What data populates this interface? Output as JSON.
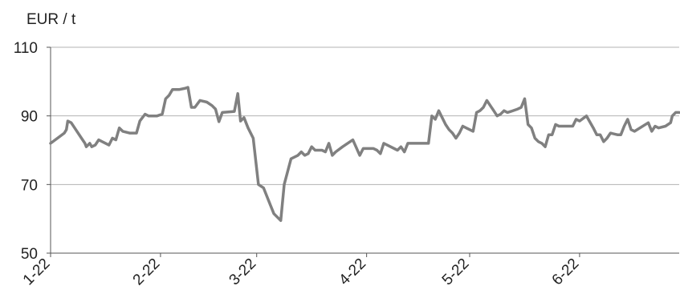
{
  "chart_data": {
    "type": "line",
    "ylabel": "EUR / t",
    "ylim": [
      50,
      110
    ],
    "yticks": [
      50,
      70,
      90,
      110
    ],
    "xlim": [
      0,
      183
    ],
    "xticks": [
      {
        "x": 0,
        "label": "1-22"
      },
      {
        "x": 32,
        "label": "2-22"
      },
      {
        "x": 60,
        "label": "3-22"
      },
      {
        "x": 92,
        "label": "4-22"
      },
      {
        "x": 122,
        "label": "5-22"
      },
      {
        "x": 154,
        "label": "6-22"
      }
    ],
    "grid": "horizontal",
    "legend": "none",
    "series": [
      {
        "color": "#808080",
        "points": [
          [
            0,
            82
          ],
          [
            2,
            83.5
          ],
          [
            4,
            85
          ],
          [
            4.6,
            86
          ],
          [
            5,
            88.5
          ],
          [
            6,
            88
          ],
          [
            7,
            86.5
          ],
          [
            9,
            83.5
          ],
          [
            10,
            82
          ],
          [
            10.4,
            81
          ],
          [
            11.4,
            82
          ],
          [
            12,
            81
          ],
          [
            13,
            81.5
          ],
          [
            14,
            83
          ],
          [
            16,
            82
          ],
          [
            17,
            81.5
          ],
          [
            18,
            83.5
          ],
          [
            19,
            83
          ],
          [
            20,
            86.5
          ],
          [
            21,
            85.5
          ],
          [
            23,
            85
          ],
          [
            25,
            85
          ],
          [
            26,
            88.5
          ],
          [
            27.5,
            90.5
          ],
          [
            28.5,
            90
          ],
          [
            31,
            90
          ],
          [
            32.5,
            90.5
          ],
          [
            33.5,
            95
          ],
          [
            34.5,
            96
          ],
          [
            35.5,
            97.7
          ],
          [
            37.5,
            97.7
          ],
          [
            39,
            98
          ],
          [
            40,
            98.3
          ],
          [
            41,
            92.5
          ],
          [
            42,
            92.5
          ],
          [
            43.5,
            94.5
          ],
          [
            45.5,
            94
          ],
          [
            47,
            93
          ],
          [
            48,
            92
          ],
          [
            49,
            88.3
          ],
          [
            50,
            91
          ],
          [
            53.5,
            91.3
          ],
          [
            54.5,
            96.5
          ],
          [
            55.3,
            88.5
          ],
          [
            56.3,
            89.5
          ],
          [
            57.5,
            86.5
          ],
          [
            59,
            83.5
          ],
          [
            60.5,
            70
          ],
          [
            62,
            69
          ],
          [
            64,
            64
          ],
          [
            65,
            61.5
          ],
          [
            67,
            59.5
          ],
          [
            68,
            70
          ],
          [
            70,
            77.5
          ],
          [
            71,
            78
          ],
          [
            72,
            78.5
          ],
          [
            73,
            79.5
          ],
          [
            74,
            78.5
          ],
          [
            75,
            79
          ],
          [
            76,
            81
          ],
          [
            77,
            80
          ],
          [
            79,
            80
          ],
          [
            80,
            79.5
          ],
          [
            81,
            82
          ],
          [
            82,
            78.5
          ],
          [
            83,
            79.5
          ],
          [
            85,
            81
          ],
          [
            88,
            83
          ],
          [
            90,
            78.5
          ],
          [
            91,
            80.5
          ],
          [
            94,
            80.5
          ],
          [
            95,
            80
          ],
          [
            96,
            79
          ],
          [
            97,
            82
          ],
          [
            98,
            81.5
          ],
          [
            101,
            80
          ],
          [
            102,
            81
          ],
          [
            103,
            79.5
          ],
          [
            104,
            82
          ],
          [
            109,
            82
          ],
          [
            110,
            82
          ],
          [
            111,
            90
          ],
          [
            112,
            89
          ],
          [
            113,
            91.5
          ],
          [
            115,
            87.5
          ],
          [
            116,
            86
          ],
          [
            117,
            85
          ],
          [
            118,
            83.5
          ],
          [
            119,
            85
          ],
          [
            120,
            87
          ],
          [
            121,
            86.5
          ],
          [
            123,
            85.5
          ],
          [
            124,
            91
          ],
          [
            125,
            91.5
          ],
          [
            126,
            92.5
          ],
          [
            127,
            94.5
          ],
          [
            128,
            93
          ],
          [
            129,
            91.5
          ],
          [
            130,
            90
          ],
          [
            131,
            90.5
          ],
          [
            132,
            91.5
          ],
          [
            133,
            91
          ],
          [
            134,
            91.3
          ],
          [
            136,
            92
          ],
          [
            137,
            92.5
          ],
          [
            138,
            95
          ],
          [
            139,
            87.5
          ],
          [
            140,
            86.5
          ],
          [
            141,
            83.5
          ],
          [
            142,
            82.5
          ],
          [
            143,
            82
          ],
          [
            144,
            81
          ],
          [
            145,
            84.5
          ],
          [
            146,
            84.5
          ],
          [
            147,
            87.5
          ],
          [
            148,
            87
          ],
          [
            152,
            87
          ],
          [
            153,
            89
          ],
          [
            154,
            88.5
          ],
          [
            156,
            90
          ],
          [
            158,
            86.5
          ],
          [
            159,
            84.5
          ],
          [
            160,
            84.5
          ],
          [
            161,
            82.5
          ],
          [
            162,
            83.5
          ],
          [
            163,
            85
          ],
          [
            165,
            84.5
          ],
          [
            166,
            84.5
          ],
          [
            167,
            87
          ],
          [
            168,
            89
          ],
          [
            169,
            86
          ],
          [
            170,
            85.5
          ],
          [
            174,
            88
          ],
          [
            175,
            85.5
          ],
          [
            176,
            87
          ],
          [
            177,
            86.5
          ],
          [
            179,
            87
          ],
          [
            180.5,
            88
          ],
          [
            181,
            90
          ],
          [
            182,
            91
          ],
          [
            183,
            91
          ]
        ]
      }
    ]
  }
}
